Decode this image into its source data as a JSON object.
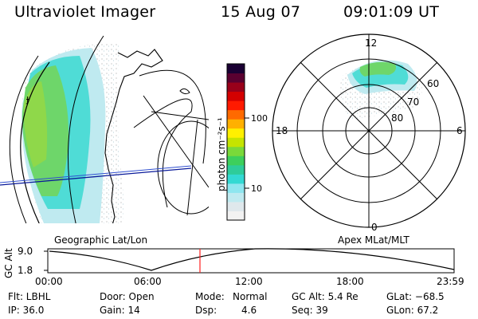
{
  "header": {
    "title": "Ultraviolet Imager",
    "date": "15 Aug 07",
    "time": "09:01:09 UT"
  },
  "colorbar": {
    "unit_label": "photon cm⁻²s⁻¹",
    "ticks": [
      "100",
      "10"
    ],
    "scale": "log",
    "colors": [
      "#f2f2f2",
      "#dfe8ec",
      "#bfeaf0",
      "#8ee6ef",
      "#33d9d3",
      "#2ecc9a",
      "#3dcf5c",
      "#7ad93a",
      "#c5e400",
      "#fff000",
      "#ffb000",
      "#ff6a00",
      "#ff1a00",
      "#d40000",
      "#99001a",
      "#5a0030",
      "#1a0033"
    ]
  },
  "geo_map": {
    "label": "Geographic Lat/Lon",
    "cursor_mark": "ɟ"
  },
  "polar_plot": {
    "label": "Apex MLat/MLT",
    "mlt_labels": {
      "top": "12",
      "left": "18",
      "right": "6",
      "bottom": "0"
    },
    "mlat_labels": [
      "60",
      "70",
      "80"
    ]
  },
  "altitude_plot": {
    "ylabel": "GC Alt",
    "y_ticks": [
      "9.0",
      "1.8"
    ],
    "x_ticks": [
      "00:00",
      "06:00",
      "12:00",
      "18:00",
      "23:59"
    ],
    "marker_color": "#ff2020"
  },
  "footer": {
    "flt": "Flt: LBHL",
    "door": "Door: Open",
    "mode_label": "Mode:",
    "mode_value": "Normal",
    "gc_alt": "GC Alt: 5.4 Re",
    "glat": "GLat: −68.5",
    "ip": "IP: 36.0",
    "gain": "Gain: 14",
    "dsp_label": "Dsp:",
    "dsp_value": "4.6",
    "seq": "Seq: 39",
    "glon": "GLon:  67.2"
  }
}
